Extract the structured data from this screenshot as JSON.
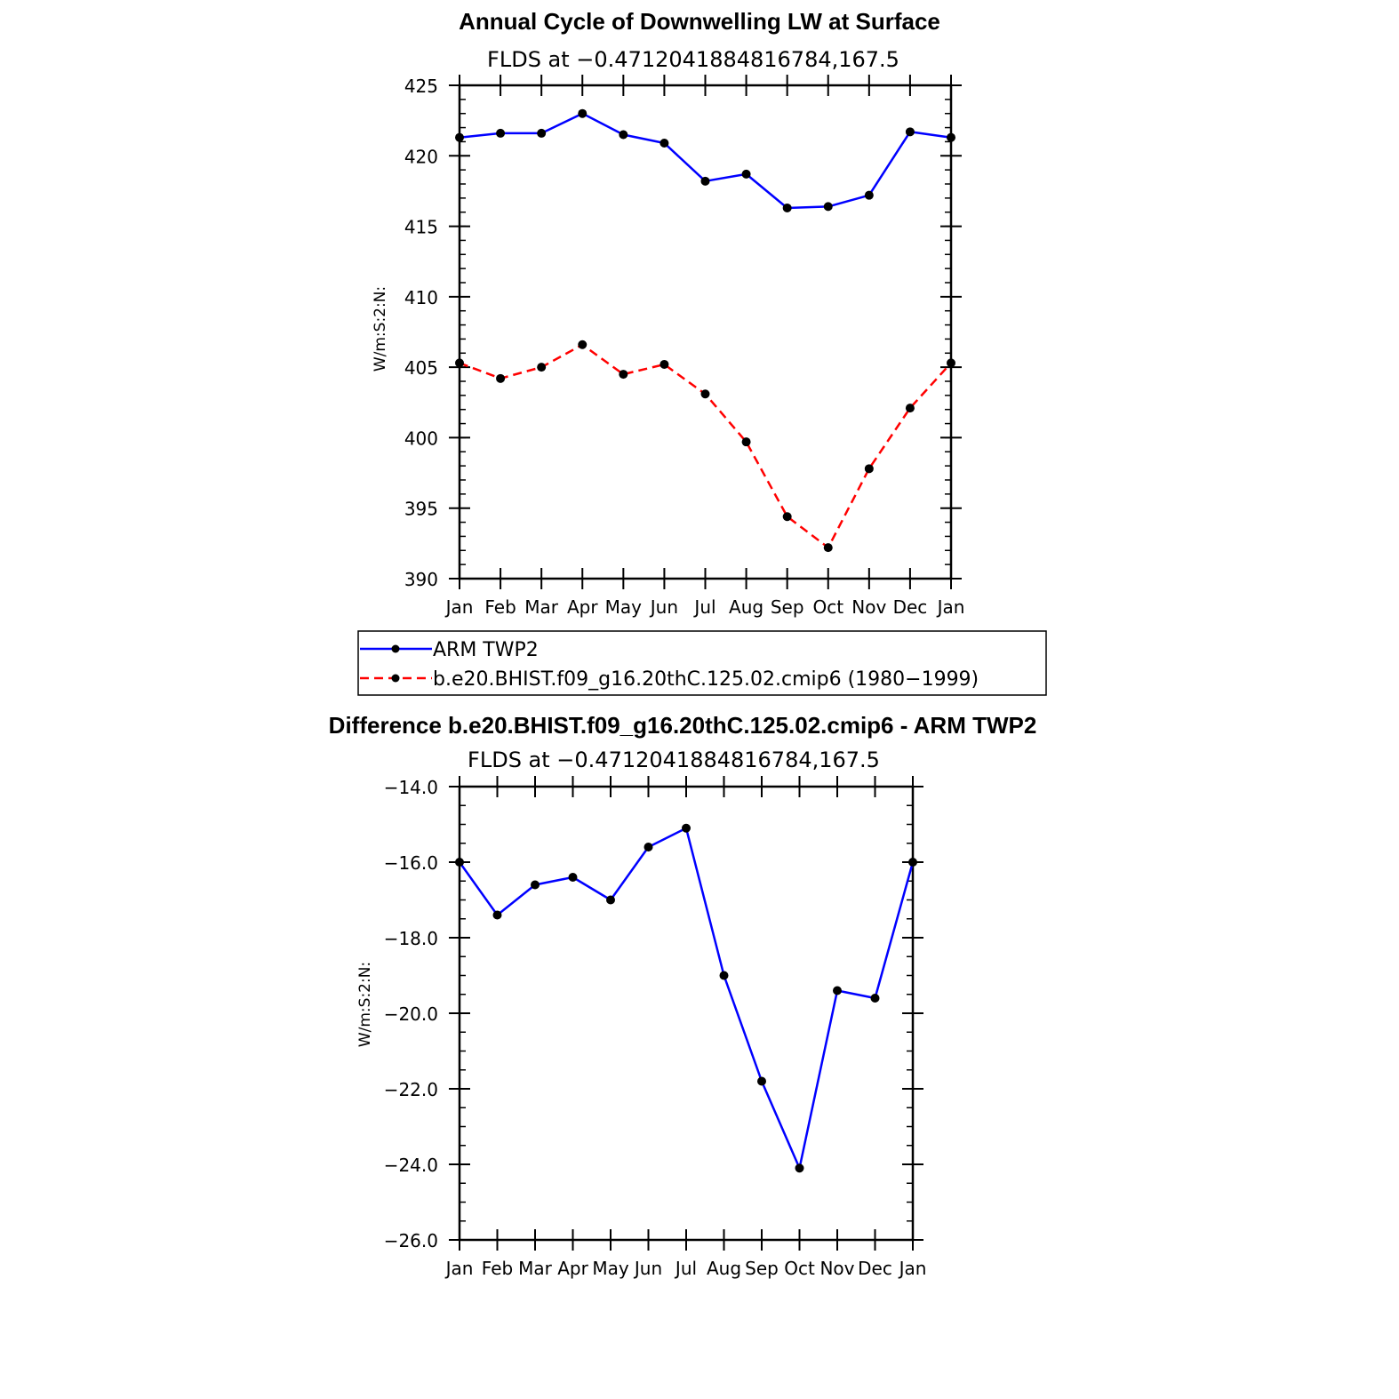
{
  "colors": {
    "series1": "#0000ff",
    "series2": "#ff0000",
    "diff": "#0000ff",
    "marker": "#000000"
  },
  "chart_data": [
    {
      "type": "line",
      "title": "Annual Cycle of Downwelling LW at Surface",
      "subtitle": "FLDS at −0.4712041884816784,167.5",
      "xlabel": "",
      "ylabel": "W/m:S:2:N:",
      "categories": [
        "Jan",
        "Feb",
        "Mar",
        "Apr",
        "May",
        "Jun",
        "Jul",
        "Aug",
        "Sep",
        "Oct",
        "Nov",
        "Dec",
        "Jan"
      ],
      "ylim": [
        390,
        425
      ],
      "yticks": [
        390,
        395,
        400,
        405,
        410,
        415,
        420,
        425
      ],
      "ytick_labels": [
        "390",
        "395",
        "400",
        "405",
        "410",
        "415",
        "420",
        "425"
      ],
      "series": [
        {
          "name": "ARM TWP2",
          "style": "solid",
          "values": [
            421.3,
            421.6,
            421.6,
            423.0,
            421.5,
            420.9,
            418.2,
            418.7,
            416.3,
            416.4,
            417.2,
            421.7,
            421.3
          ]
        },
        {
          "name": "b.e20.BHIST.f09_g16.20thC.125.02.cmip6 (1980−1999)",
          "style": "dashed",
          "values": [
            405.3,
            404.2,
            405.0,
            406.6,
            404.5,
            405.2,
            403.1,
            399.7,
            394.4,
            392.2,
            397.8,
            402.1,
            405.3
          ]
        }
      ],
      "legend_position": "below"
    },
    {
      "type": "line",
      "title": "Difference b.e20.BHIST.f09_g16.20thC.125.02.cmip6 - ARM TWP2",
      "subtitle": "FLDS at −0.4712041884816784,167.5",
      "xlabel": "",
      "ylabel": "W/m:S:2:N:",
      "categories": [
        "Jan",
        "Feb",
        "Mar",
        "Apr",
        "May",
        "Jun",
        "Jul",
        "Aug",
        "Sep",
        "Oct",
        "Nov",
        "Dec",
        "Jan"
      ],
      "ylim": [
        -26.0,
        -14.0
      ],
      "yticks": [
        -26,
        -24,
        -22,
        -20,
        -18,
        -16,
        -14
      ],
      "ytick_labels": [
        "−26.0",
        "−24.0",
        "−22.0",
        "−20.0",
        "−18.0",
        "−16.0",
        "−14.0"
      ],
      "series": [
        {
          "name": "Difference",
          "style": "solid",
          "values": [
            -16.0,
            -17.4,
            -16.6,
            -16.4,
            -17.0,
            -15.6,
            -15.1,
            -19.0,
            -21.8,
            -24.1,
            -19.4,
            -19.6,
            -16.0
          ]
        }
      ]
    }
  ]
}
